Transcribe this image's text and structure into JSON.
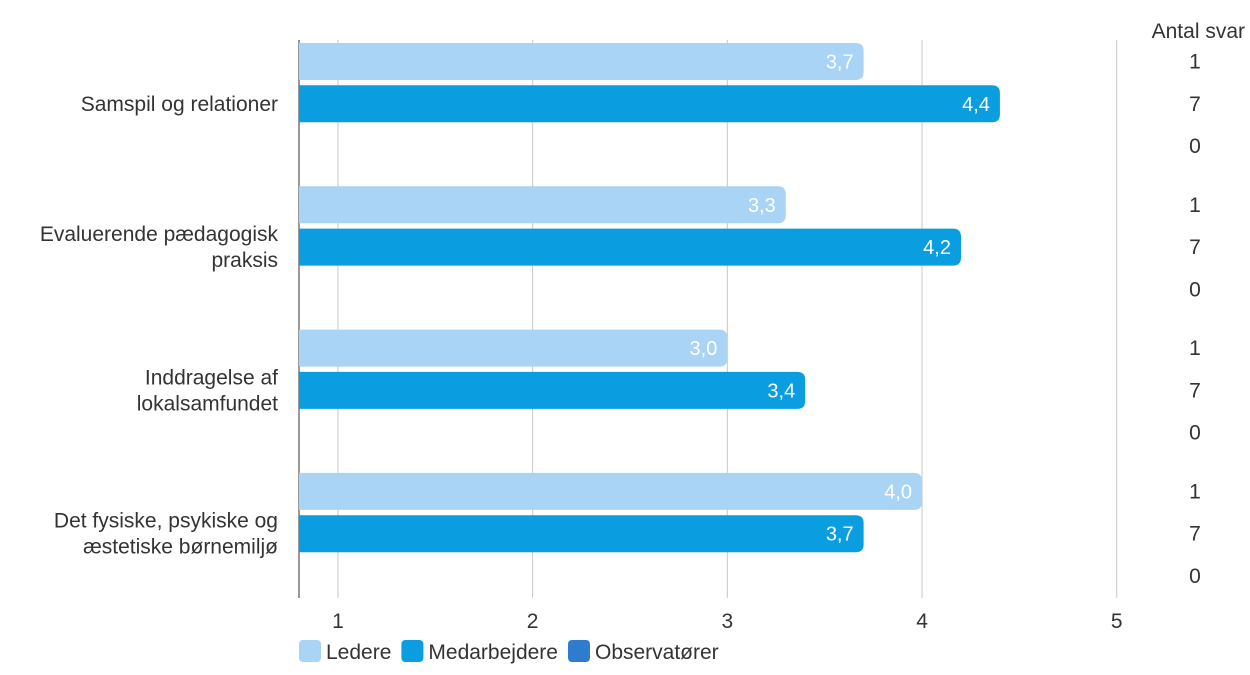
{
  "chart_data": {
    "type": "bar",
    "orientation": "horizontal",
    "categories": [
      [
        "Samspil og relationer"
      ],
      [
        "Evaluerende pædagogisk",
        "praksis"
      ],
      [
        "Inddragelse af",
        "lokalsamfundet"
      ],
      [
        "Det fysiske, psykiske og",
        "æstetiske børnemiljø"
      ]
    ],
    "series": [
      {
        "name": "Ledere",
        "color": "#a9d4f5",
        "values": [
          3.7,
          3.3,
          3.0,
          4.0
        ],
        "labels": [
          "3,7",
          "3,3",
          "3,0",
          "4,0"
        ],
        "counts": [
          "1",
          "1",
          "1",
          "1"
        ]
      },
      {
        "name": "Medarbejdere",
        "color": "#0a9ddf",
        "values": [
          4.4,
          4.2,
          3.4,
          3.7
        ],
        "labels": [
          "4,4",
          "4,2",
          "3,4",
          "3,7"
        ],
        "counts": [
          "7",
          "7",
          "7",
          "7"
        ]
      },
      {
        "name": "Observatører",
        "color": "#2f7bd0",
        "values": [
          null,
          null,
          null,
          null
        ],
        "labels": [
          "",
          "",
          "",
          ""
        ],
        "counts": [
          "0",
          "0",
          "0",
          "0"
        ]
      }
    ],
    "xticks": [
      "1",
      "2",
      "3",
      "4",
      "5"
    ],
    "xlim": [
      0.8,
      5
    ],
    "grid": true,
    "count_header": "Antal svar",
    "legend_position": "bottom"
  }
}
